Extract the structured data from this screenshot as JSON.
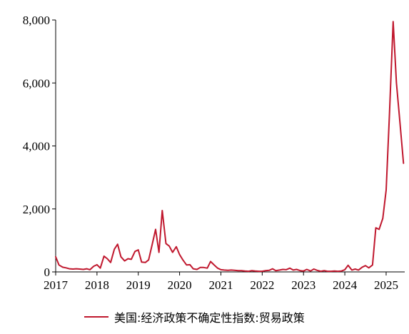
{
  "chart_data": {
    "type": "line",
    "title": "",
    "xlabel": "",
    "ylabel": "",
    "x_ticks": [
      "2017",
      "2018",
      "2019",
      "2020",
      "2021",
      "2022",
      "2023",
      "2024",
      "2025"
    ],
    "y_ticks": [
      "0",
      "2,000",
      "4,000",
      "6,000",
      "8,000"
    ],
    "xlim": [
      2017.0,
      2025.45
    ],
    "ylim": [
      0,
      8000
    ],
    "grid": false,
    "legend_position": "bottom",
    "series": [
      {
        "name": "美国:经济政策不确定性指数:贸易政策",
        "color": "#c0182e",
        "x": [
          2017.0,
          2017.08,
          2017.17,
          2017.25,
          2017.33,
          2017.42,
          2017.5,
          2017.58,
          2017.67,
          2017.75,
          2017.83,
          2017.92,
          2018.0,
          2018.08,
          2018.17,
          2018.25,
          2018.33,
          2018.42,
          2018.5,
          2018.58,
          2018.67,
          2018.75,
          2018.83,
          2018.92,
          2019.0,
          2019.08,
          2019.17,
          2019.25,
          2019.33,
          2019.42,
          2019.5,
          2019.58,
          2019.67,
          2019.75,
          2019.83,
          2019.92,
          2020.0,
          2020.08,
          2020.17,
          2020.25,
          2020.33,
          2020.42,
          2020.5,
          2020.58,
          2020.67,
          2020.75,
          2020.83,
          2020.92,
          2021.0,
          2021.08,
          2021.17,
          2021.25,
          2021.33,
          2021.42,
          2021.5,
          2021.58,
          2021.67,
          2021.75,
          2021.83,
          2021.92,
          2022.0,
          2022.08,
          2022.17,
          2022.25,
          2022.33,
          2022.42,
          2022.5,
          2022.58,
          2022.67,
          2022.75,
          2022.83,
          2022.92,
          2023.0,
          2023.08,
          2023.17,
          2023.25,
          2023.33,
          2023.42,
          2023.5,
          2023.58,
          2023.67,
          2023.75,
          2023.83,
          2023.92,
          2024.0,
          2024.08,
          2024.17,
          2024.25,
          2024.33,
          2024.42,
          2024.5,
          2024.58,
          2024.67,
          2024.75,
          2024.83,
          2024.92,
          2025.0,
          2025.08,
          2025.17,
          2025.25,
          2025.33,
          2025.42
        ],
        "values": [
          480,
          220,
          150,
          130,
          100,
          90,
          100,
          90,
          80,
          100,
          70,
          180,
          230,
          120,
          500,
          420,
          300,
          720,
          880,
          480,
          350,
          420,
          400,
          650,
          700,
          310,
          300,
          380,
          830,
          1350,
          620,
          1950,
          900,
          820,
          620,
          800,
          550,
          380,
          220,
          230,
          100,
          80,
          140,
          140,
          120,
          330,
          230,
          120,
          70,
          60,
          50,
          60,
          50,
          40,
          40,
          30,
          20,
          40,
          30,
          20,
          20,
          40,
          50,
          100,
          40,
          60,
          80,
          70,
          120,
          60,
          80,
          40,
          30,
          80,
          30,
          90,
          50,
          20,
          40,
          20,
          20,
          30,
          20,
          30,
          70,
          210,
          60,
          90,
          60,
          150,
          200,
          130,
          220,
          1400,
          1350,
          1700,
          2600,
          5000,
          7950,
          6000,
          4800,
          3450
        ]
      }
    ]
  }
}
